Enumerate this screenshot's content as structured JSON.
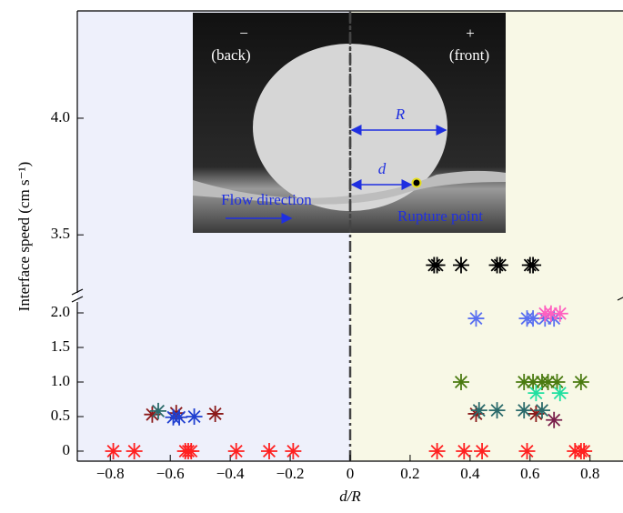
{
  "chart_data": [
    {
      "type": "scatter",
      "ylim": [
        3.22,
        4.46
      ],
      "yticks": [
        3.5,
        {
          "value": 4,
          "label": "4.0"
        }
      ],
      "series": [
        {
          "color": "#000000",
          "x": [
            0.28,
            0.29,
            0.37,
            0.49,
            0.5,
            0.6,
            0.61
          ],
          "values": [
            3.37,
            3.37,
            3.37,
            3.37,
            3.37,
            3.37,
            3.37
          ]
        }
      ]
    },
    {
      "type": "scatter",
      "xlim": [
        -0.91,
        0.91
      ],
      "ylim": [
        -0.145,
        2.25
      ],
      "xlabel": "d/R",
      "ylabel": "Interface speed (cm s⁻¹)",
      "xticks": [
        {
          "value": -0.8,
          "label": "−0.8"
        },
        {
          "value": -0.6,
          "label": "−0.6"
        },
        {
          "value": -0.4,
          "label": "−0.4"
        },
        {
          "value": -0.2,
          "label": "−0.2"
        },
        0,
        0.2,
        0.4,
        0.6,
        0.8
      ],
      "yticks": [
        0,
        0.5,
        {
          "value": 1,
          "label": "1.0"
        },
        1.5,
        {
          "value": 2,
          "label": "2.0"
        }
      ],
      "series": [
        {
          "color": "#ff2020",
          "x": [
            -0.79,
            -0.72,
            -0.55,
            -0.54,
            -0.53,
            -0.38,
            -0.27,
            -0.19,
            0.29,
            0.38,
            0.44,
            0.59,
            0.75,
            0.77,
            0.78
          ],
          "values": [
            0,
            0,
            0,
            0,
            0,
            0,
            0,
            0,
            0,
            0,
            0,
            0,
            0,
            0,
            0
          ]
        },
        {
          "color": "#8b1a1a",
          "x": [
            -0.66,
            -0.58,
            -0.45,
            0.42,
            0.62
          ],
          "values": [
            0.53,
            0.55,
            0.54,
            0.54,
            0.54
          ]
        },
        {
          "color": "#7a1f4b",
          "x": [
            0.68
          ],
          "values": [
            0.45
          ]
        },
        {
          "color": "#2b6b6b",
          "x": [
            -0.64,
            0.43,
            0.49,
            0.58,
            0.64
          ],
          "values": [
            0.58,
            0.59,
            0.59,
            0.59,
            0.59
          ]
        },
        {
          "color": "#1f3fd0",
          "x": [
            -0.59,
            -0.57,
            -0.52
          ],
          "values": [
            0.49,
            0.49,
            0.5
          ]
        },
        {
          "color": "#4a7a10",
          "x": [
            0.37,
            0.58,
            0.61,
            0.64,
            0.66,
            0.69,
            0.77
          ],
          "values": [
            1,
            1,
            1,
            1,
            1,
            1,
            1
          ]
        },
        {
          "color": "#20e0a0",
          "x": [
            0.62,
            0.7
          ],
          "values": [
            0.84,
            0.84
          ]
        },
        {
          "color": "#5a70f0",
          "x": [
            0.42,
            0.59,
            0.61,
            0.65,
            0.68
          ],
          "values": [
            1.92,
            1.92,
            1.92,
            1.92,
            1.92
          ]
        },
        {
          "color": "#ff60c0",
          "x": [
            0.65,
            0.67,
            0.7
          ],
          "values": [
            1.99,
            1.99,
            1.99
          ]
        }
      ]
    }
  ],
  "inset": {
    "back_sign": "−",
    "back": "(back)",
    "front_sign": "+",
    "front": "(front)",
    "radius": "R",
    "distance": "d",
    "flow": "Flow direction",
    "rupture": "Rupture point"
  }
}
